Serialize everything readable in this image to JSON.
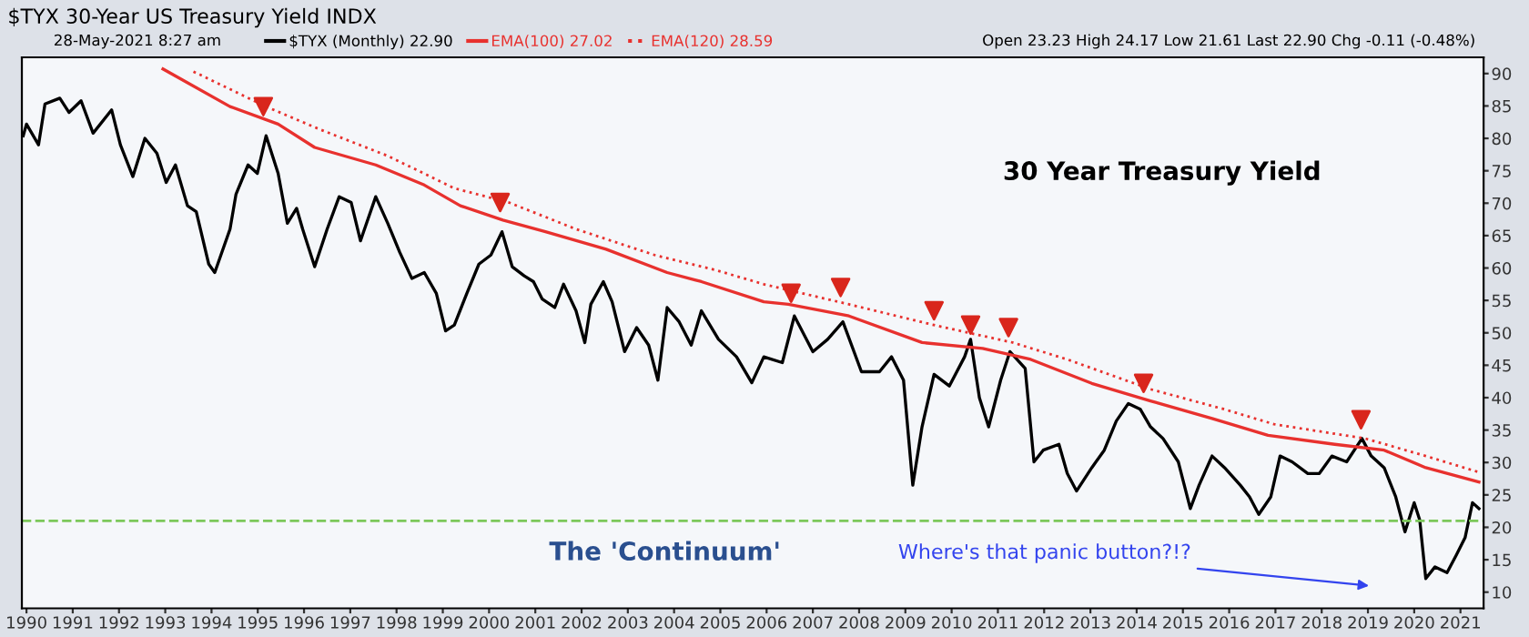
{
  "chart_data": {
    "type": "line",
    "title": "$TYX 30-Year US Treasury Yield INDX",
    "subtitle": "28-May-2021 8:27 am",
    "annotations": [
      "Open 23.23 High 24.17 Low 21.61 Last 22.90 Chg -0.11 (-0.48%)",
      "30 Year Treasury Yield",
      "The 'Continuum'",
      "Where's that panic button?!?"
    ],
    "series": [
      {
        "name": "$TYX (Monthly) 22.90",
        "color": "#000000",
        "line_style": "solid",
        "x": [
          1989.93,
          1990.0,
          1990.26,
          1990.4,
          1990.72,
          1990.92,
          1991.18,
          1991.44,
          1991.84,
          1992.03,
          1992.3,
          1992.56,
          1992.82,
          1993.02,
          1993.22,
          1993.48,
          1993.67,
          1993.94,
          1994.07,
          1994.4,
          1994.53,
          1994.79,
          1994.99,
          1995.18,
          1995.44,
          1995.64,
          1995.84,
          1995.97,
          1996.23,
          1996.5,
          1996.76,
          1997.02,
          1997.22,
          1997.55,
          1997.81,
          1998.07,
          1998.33,
          1998.6,
          1998.86,
          1999.06,
          1999.25,
          1999.52,
          1999.78,
          2000.04,
          2000.28,
          2000.5,
          2000.76,
          2000.96,
          2001.15,
          2001.42,
          2001.61,
          2001.88,
          2002.07,
          2002.2,
          2002.47,
          2002.66,
          2002.93,
          2003.19,
          2003.45,
          2003.65,
          2003.85,
          2004.11,
          2004.37,
          2004.59,
          2004.96,
          2005.35,
          2005.68,
          2005.94,
          2006.34,
          2006.6,
          2007.0,
          2007.32,
          2007.65,
          2008.05,
          2008.44,
          2008.7,
          2008.96,
          2009.16,
          2009.36,
          2009.62,
          2009.95,
          2010.28,
          2010.41,
          2010.6,
          2010.8,
          2011.06,
          2011.26,
          2011.59,
          2011.78,
          2011.98,
          2012.32,
          2012.5,
          2012.7,
          2013.03,
          2013.3,
          2013.56,
          2013.82,
          2014.08,
          2014.3,
          2014.57,
          2014.9,
          2015.16,
          2015.35,
          2015.63,
          2015.9,
          2016.24,
          2016.44,
          2016.64,
          2016.9,
          2017.1,
          2017.36,
          2017.7,
          2017.95,
          2018.22,
          2018.54,
          2018.87,
          2019.07,
          2019.35,
          2019.6,
          2019.8,
          2020.0,
          2020.12,
          2020.25,
          2020.45,
          2020.71,
          2020.91,
          2021.1,
          2021.26,
          2021.4
        ],
        "values": [
          80.4,
          82.2,
          79.0,
          85.3,
          86.2,
          84.0,
          85.8,
          80.8,
          84.4,
          79.0,
          74.1,
          80.0,
          77.7,
          73.2,
          75.9,
          69.6,
          68.7,
          60.6,
          59.3,
          66.0,
          71.4,
          75.9,
          74.6,
          80.4,
          74.6,
          66.9,
          69.2,
          66.0,
          60.2,
          66.0,
          71.0,
          70.1,
          64.2,
          71.0,
          66.9,
          62.4,
          58.4,
          59.3,
          56.1,
          50.3,
          51.2,
          56.1,
          60.6,
          62.0,
          65.6,
          60.2,
          58.8,
          57.9,
          55.2,
          53.9,
          57.5,
          53.4,
          48.5,
          54.4,
          57.9,
          54.8,
          47.1,
          50.8,
          48.1,
          42.7,
          53.9,
          51.7,
          48.1,
          53.4,
          49.0,
          46.3,
          42.3,
          46.3,
          45.4,
          52.6,
          47.1,
          49.0,
          51.7,
          44.0,
          44.0,
          46.3,
          42.7,
          26.5,
          35.5,
          43.6,
          41.8,
          46.3,
          49.0,
          40.0,
          35.5,
          42.7,
          47.1,
          44.5,
          30.1,
          31.9,
          32.8,
          28.3,
          25.6,
          29.2,
          31.9,
          36.4,
          39.1,
          38.2,
          35.5,
          33.7,
          30.1,
          22.9,
          26.5,
          31.0,
          29.2,
          26.5,
          24.7,
          22.0,
          24.7,
          31.0,
          30.1,
          28.3,
          28.3,
          31.0,
          30.1,
          33.7,
          31.0,
          29.2,
          24.7,
          19.3,
          23.8,
          21.1,
          12.1,
          13.9,
          13.0,
          15.7,
          18.4,
          23.8,
          22.9
        ]
      },
      {
        "name": "EMA(100) 27.02",
        "color": "#e8312e",
        "line_style": "solid",
        "x": [
          1992.95,
          1994.4,
          1995.44,
          1996.23,
          1997.55,
          1998.6,
          1999.38,
          2000.3,
          2001.22,
          2002.53,
          2003.85,
          2004.59,
          2005.94,
          2006.47,
          2007.78,
          2009.36,
          2010.67,
          2011.71,
          2013.03,
          2014.3,
          2015.63,
          2016.84,
          2018.28,
          2019.35,
          2020.25,
          2021.4
        ],
        "values": [
          90.7,
          84.9,
          82.2,
          78.6,
          75.9,
          72.8,
          69.6,
          67.4,
          65.6,
          62.9,
          59.3,
          57.9,
          54.8,
          54.4,
          52.6,
          48.5,
          47.6,
          45.9,
          42.2,
          39.5,
          36.8,
          34.2,
          32.8,
          31.9,
          29.2,
          27.0
        ]
      },
      {
        "name": "EMA(120) 28.59",
        "color": "#e8312e",
        "line_style": "dotted",
        "x": [
          1993.61,
          1995.18,
          1996.37,
          1997.81,
          1999.25,
          2000.43,
          2001.88,
          2003.58,
          2004.89,
          2005.94,
          2006.47,
          2007.78,
          2009.62,
          2011.32,
          2012.5,
          2014.3,
          2015.9,
          2016.97,
          2018.94,
          2020.25,
          2021.4
        ],
        "values": [
          90.3,
          84.9,
          81.3,
          77.3,
          72.3,
          70.1,
          66.0,
          62.0,
          59.7,
          57.5,
          56.6,
          54.4,
          51.2,
          48.5,
          45.9,
          41.3,
          38.2,
          35.9,
          33.7,
          31.0,
          28.5
        ]
      },
      {
        "type": "scatter",
        "color": "#d9261c",
        "marker": "triangle",
        "x": [
          1995.12,
          2000.24,
          2006.53,
          2007.6,
          2009.62,
          2010.41,
          2011.23,
          2014.15,
          2018.85
        ],
        "values": [
          84.9,
          70.1,
          56.1,
          57.0,
          53.4,
          51.2,
          50.8,
          42.2,
          36.6
        ]
      }
    ],
    "xlim": [
      1989.9,
      2021.5
    ],
    "xticks": [
      1990,
      1991,
      1992,
      1993,
      1994,
      1995,
      1996,
      1997,
      1998,
      1999,
      2000,
      2001,
      2002,
      2003,
      2004,
      2005,
      2006,
      2007,
      2008,
      2009,
      2010,
      2011,
      2012,
      2013,
      2014,
      2015,
      2016,
      2017,
      2018,
      2019,
      2020,
      2021
    ],
    "ylim": [
      7.5,
      92.5
    ],
    "yticks": [
      10,
      15,
      20,
      25,
      30,
      35,
      40,
      45,
      50,
      55,
      60,
      65,
      70,
      75,
      80,
      85,
      90
    ],
    "ref_lines": [
      {
        "axis": "y",
        "value": 21,
        "color": "#7cc85a",
        "line_style": "dashed"
      }
    ],
    "legend": "top left",
    "grid": false
  }
}
